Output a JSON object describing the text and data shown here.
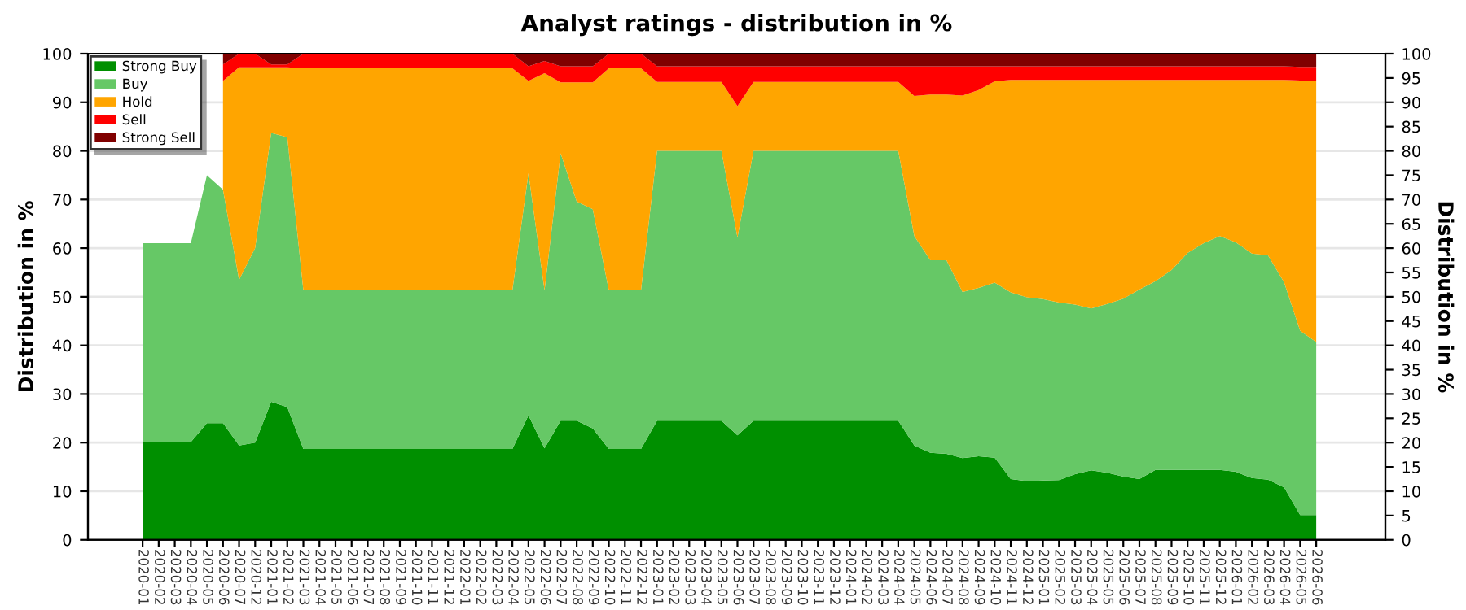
{
  "chart_data": {
    "type": "area",
    "stacked": true,
    "title": "Analyst ratings - distribution in %",
    "ylabel": "Distribution in %",
    "y2label": "Distribution in %",
    "categories": [
      "2020-01",
      "2020-02",
      "2020-03",
      "2020-04",
      "2020-05",
      "2020-06",
      "2020-07",
      "2020-12",
      "2021-01",
      "2021-02",
      "2021-03",
      "2021-04",
      "2021-05",
      "2021-06",
      "2021-07",
      "2021-08",
      "2021-09",
      "2021-10",
      "2021-11",
      "2021-12",
      "2022-01",
      "2022-02",
      "2022-03",
      "2022-04",
      "2022-05",
      "2022-06",
      "2022-07",
      "2022-08",
      "2022-09",
      "2022-10",
      "2022-11",
      "2022-12",
      "2023-01",
      "2023-02",
      "2023-03",
      "2023-04",
      "2023-05",
      "2023-06",
      "2023-07",
      "2023-08",
      "2023-09",
      "2023-10",
      "2023-11",
      "2023-12",
      "2024-01",
      "2024-02",
      "2024-03",
      "2024-04",
      "2024-05",
      "2024-06",
      "2024-07",
      "2024-08",
      "2024-09",
      "2024-10",
      "2024-11",
      "2024-12",
      "2025-01",
      "2025-02",
      "2025-03",
      "2025-04",
      "2025-05",
      "2025-06",
      "2025-07",
      "2025-08",
      "2025-09",
      "2025-10",
      "2025-11",
      "2025-12",
      "2026-01",
      "2026-02",
      "2026-03",
      "2026-04",
      "2026-05",
      "2026-06"
    ],
    "series": [
      {
        "name": "Strong Buy",
        "color": "#008f00",
        "values": [
          20.1,
          20.1,
          20.1,
          20.1,
          24,
          24,
          19.4,
          20,
          28.4,
          27.3,
          18.7,
          18.7,
          18.7,
          18.7,
          18.7,
          18.7,
          18.7,
          18.7,
          18.7,
          18.7,
          18.7,
          18.7,
          18.7,
          18.7,
          25.6,
          18.8,
          24.5,
          24.5,
          22.9,
          18.7,
          18.7,
          18.7,
          24.5,
          24.5,
          24.5,
          24.5,
          24.5,
          21.5,
          24.5,
          24.5,
          24.5,
          24.5,
          24.5,
          24.5,
          24.5,
          24.5,
          24.5,
          24.5,
          19.4,
          17.9,
          17.7,
          16.8,
          17.2,
          16.9,
          12.5,
          12.1,
          12.2,
          12.3,
          13.5,
          14.3,
          13.8,
          13,
          12.5,
          14.4,
          14.4,
          14.4,
          14.4,
          14.4,
          14,
          12.7,
          12.4,
          10.8,
          5.1,
          5.1
        ]
      },
      {
        "name": "Buy",
        "color": "#66c866",
        "values": [
          40.9,
          40.9,
          40.9,
          40.9,
          51,
          48,
          34.1,
          40,
          55.3,
          55.5,
          32.6,
          32.6,
          32.6,
          32.6,
          32.6,
          32.6,
          32.6,
          32.6,
          32.6,
          32.6,
          32.6,
          32.6,
          32.6,
          32.6,
          49.8,
          32.5,
          55,
          45.1,
          45.1,
          32.6,
          32.6,
          32.6,
          55.5,
          55.5,
          55.5,
          55.5,
          55.5,
          40.7,
          55.5,
          55.5,
          55.5,
          55.5,
          55.5,
          55.5,
          55.5,
          55.5,
          55.5,
          55.5,
          43.1,
          39.6,
          39.8,
          34.2,
          34.6,
          36,
          38.4,
          37.8,
          37.3,
          36.5,
          34.9,
          33.3,
          34.7,
          36.6,
          39,
          38.8,
          41.1,
          44.6,
          46.6,
          48.1,
          47.2,
          46.2,
          46.1,
          42.2,
          37.9,
          35.6
        ]
      },
      {
        "name": "Hold",
        "color": "#ffa500",
        "values": [
          null,
          null,
          null,
          null,
          null,
          22.4,
          43.7,
          37.2,
          13.5,
          14.4,
          45.7,
          45.7,
          45.7,
          45.7,
          45.7,
          45.7,
          45.7,
          45.7,
          45.7,
          45.7,
          45.7,
          45.7,
          45.7,
          45.7,
          19,
          44.7,
          14.6,
          24.5,
          26.1,
          45.7,
          45.7,
          45.7,
          14.2,
          14.2,
          14.2,
          14.2,
          14.2,
          27,
          14.2,
          14.2,
          14.2,
          14.2,
          14.2,
          14.2,
          14.2,
          14.2,
          14.2,
          14.2,
          28.8,
          34.1,
          34.1,
          40.4,
          40.7,
          41.4,
          43.7,
          44.7,
          45.1,
          45.8,
          46.2,
          47,
          46.1,
          45,
          43.1,
          41.4,
          39.1,
          35.6,
          33.6,
          32.1,
          33.4,
          35.7,
          36.1,
          41.6,
          51.5,
          53.8
        ]
      },
      {
        "name": "Sell",
        "color": "#ff0000",
        "values": [
          null,
          null,
          null,
          null,
          null,
          3.4,
          2.8,
          2.8,
          0.6,
          0.6,
          3,
          3,
          3,
          3,
          3,
          3,
          3,
          3,
          3,
          3,
          3,
          3,
          3,
          3,
          3,
          2.5,
          3.3,
          3.3,
          3.3,
          3,
          3,
          3,
          3.2,
          3.2,
          3.2,
          3.2,
          3.2,
          8.2,
          3.2,
          3.2,
          3.2,
          3.2,
          3.2,
          3.2,
          3.2,
          3.2,
          3.2,
          3.2,
          6.1,
          5.8,
          5.8,
          6,
          4.9,
          3.1,
          2.8,
          2.8,
          2.8,
          2.8,
          2.8,
          2.8,
          2.8,
          2.8,
          2.8,
          2.8,
          2.8,
          2.8,
          2.8,
          2.8,
          2.8,
          2.8,
          2.8,
          2.8,
          2.8,
          2.8
        ]
      },
      {
        "name": "Strong Sell",
        "color": "#800000",
        "values": [
          null,
          null,
          null,
          null,
          null,
          2.2,
          0,
          0,
          2.2,
          2.2,
          0,
          0,
          0,
          0,
          0,
          0,
          0,
          0,
          0,
          0,
          0,
          0,
          0,
          0,
          2.6,
          1.5,
          2.6,
          2.6,
          2.6,
          0,
          0,
          0,
          2.6,
          2.6,
          2.6,
          2.6,
          2.6,
          2.6,
          2.6,
          2.6,
          2.6,
          2.6,
          2.6,
          2.6,
          2.6,
          2.6,
          2.6,
          2.6,
          2.6,
          2.6,
          2.6,
          2.6,
          2.6,
          2.6,
          2.6,
          2.6,
          2.6,
          2.6,
          2.6,
          2.6,
          2.6,
          2.6,
          2.6,
          2.6,
          2.6,
          2.6,
          2.6,
          2.6,
          2.6,
          2.6,
          2.6,
          2.6,
          2.6,
          2.6
        ]
      }
    ],
    "ylim": [
      0,
      100
    ],
    "yticks": [
      0,
      10,
      20,
      30,
      40,
      50,
      60,
      70,
      80,
      90,
      100
    ],
    "y2lim": [
      0,
      100
    ],
    "y2ticks": [
      0,
      5,
      10,
      15,
      20,
      25,
      30,
      35,
      40,
      45,
      50,
      55,
      60,
      65,
      70,
      75,
      80,
      85,
      90,
      95,
      100
    ],
    "grid": "y",
    "legend": "top left"
  }
}
